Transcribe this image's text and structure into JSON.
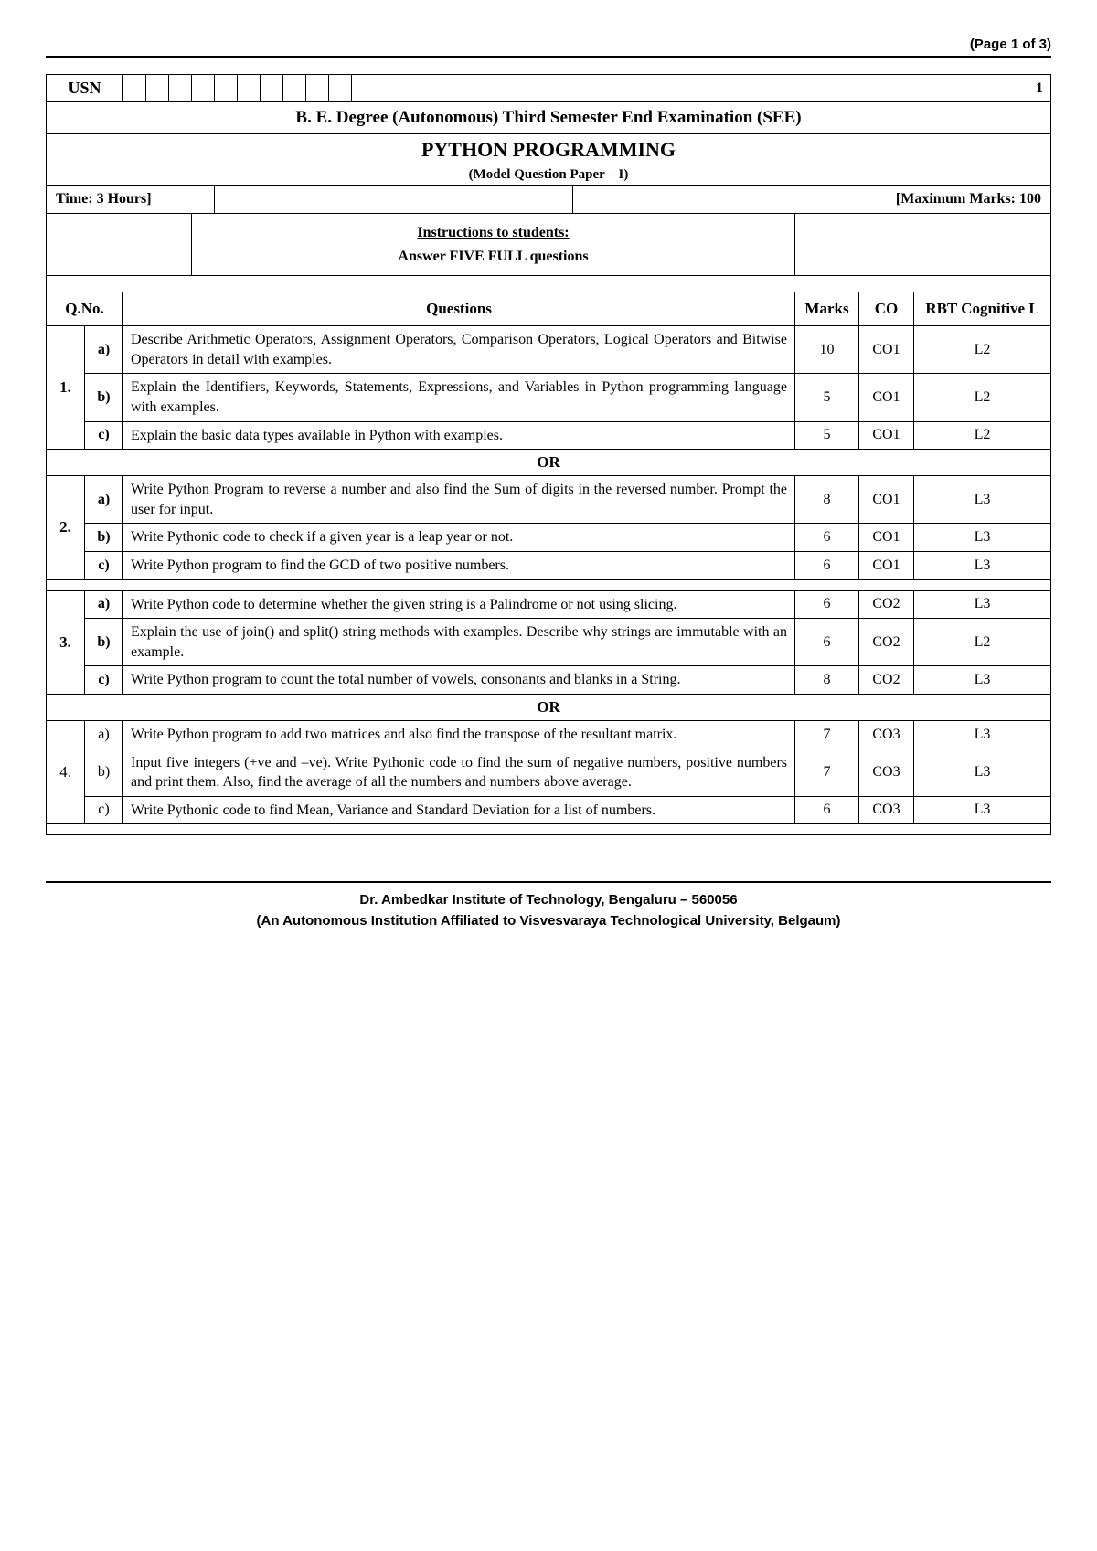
{
  "page_indicator": "(Page 1 of 3)",
  "usn_label": "USN",
  "right_number": "1",
  "degree_title": "B. E. Degree (Autonomous) Third Semester End Examination (SEE)",
  "subject_title": "PYTHON PROGRAMMING",
  "model_paper": "(Model Question Paper – I)",
  "time_label": "Time: 3 Hours]",
  "marks_label": "[Maximum Marks: 100",
  "instructions_heading": "Instructions to students:",
  "instructions_text": "Answer FIVE FULL questions",
  "headers": {
    "qno": "Q.No.",
    "questions": "Questions",
    "marks": "Marks",
    "co": "CO",
    "rbt": "RBT Cognitive L"
  },
  "or_label": "OR",
  "groups": [
    {
      "num": "1.",
      "bold": true,
      "rows": [
        {
          "sub": "a)",
          "text": "Describe Arithmetic Operators, Assignment Operators, Comparison Operators, Logical Operators and Bitwise Operators in detail with examples.",
          "marks": "10",
          "co": "CO1",
          "rbt": "L2"
        },
        {
          "sub": "b)",
          "text": "Explain the Identifiers, Keywords, Statements, Expressions, and Variables in Python programming language with examples.",
          "marks": "5",
          "co": "CO1",
          "rbt": "L2"
        },
        {
          "sub": "c)",
          "text": "Explain the basic data types available in Python with examples.",
          "marks": "5",
          "co": "CO1",
          "rbt": "L2"
        }
      ],
      "after": "or"
    },
    {
      "num": "2.",
      "bold": true,
      "rows": [
        {
          "sub": "a)",
          "text": "Write Python Program to reverse a number and also find the Sum of digits in the reversed number. Prompt the user for input.",
          "marks": "8",
          "co": "CO1",
          "rbt": "L3"
        },
        {
          "sub": "b)",
          "text": "Write Pythonic code to check if a given year is a leap year or not.",
          "marks": "6",
          "co": "CO1",
          "rbt": "L3"
        },
        {
          "sub": "c)",
          "text": "Write Python program to find the GCD of two positive numbers.",
          "marks": "6",
          "co": "CO1",
          "rbt": "L3"
        }
      ],
      "after": "gap"
    },
    {
      "num": "3.",
      "bold": true,
      "rows": [
        {
          "sub": "a)",
          "text": "Write Python code to determine whether the given string is a Palindrome or not using slicing.",
          "marks": "6",
          "co": "CO2",
          "rbt": "L3"
        },
        {
          "sub": "b)",
          "text": "Explain the use of join() and split() string methods with examples. Describe why strings are immutable with an example.",
          "marks": "6",
          "co": "CO2",
          "rbt": "L2"
        },
        {
          "sub": "c)",
          "text": "Write Python program to count the total number of vowels, consonants and blanks in a String.",
          "marks": "8",
          "co": "CO2",
          "rbt": "L3"
        }
      ],
      "after": "or"
    },
    {
      "num": "4.",
      "bold": false,
      "rows": [
        {
          "sub": "a)",
          "text": "Write Python program to add two matrices and also find the transpose of the resultant matrix.",
          "marks": "7",
          "co": "CO3",
          "rbt": "L3"
        },
        {
          "sub": "b)",
          "text": "Input five integers (+ve and –ve). Write Pythonic code to find the sum of negative numbers, positive numbers and print them. Also, find the average of all the numbers and numbers above average.",
          "marks": "7",
          "co": "CO3",
          "rbt": "L3"
        },
        {
          "sub": "c)",
          "text": "Write Pythonic code to find Mean, Variance and Standard Deviation for a list of numbers.",
          "marks": "6",
          "co": "CO3",
          "rbt": "L3"
        }
      ],
      "after": "gap"
    }
  ],
  "footer_line1": "Dr. Ambedkar Institute of Technology, Bengaluru – 560056",
  "footer_line2": "(An Autonomous Institution Affiliated to Visvesvaraya Technological University, Belgaum)"
}
